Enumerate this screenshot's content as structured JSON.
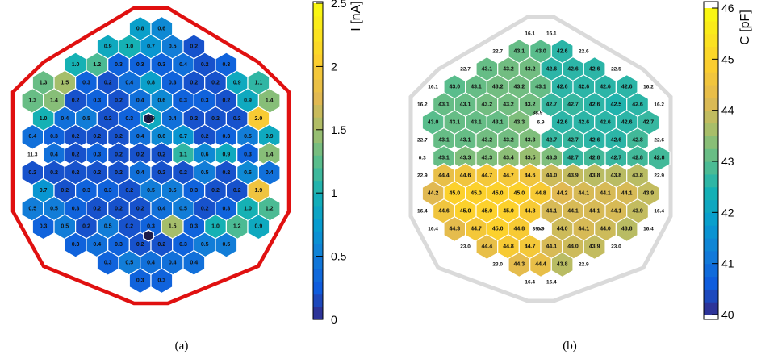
{
  "chart_data": [
    {
      "type": "heatmap",
      "panel_label": "(a)",
      "colorbar": {
        "title": "I [nA]",
        "min": 0,
        "max": 2.5,
        "ticks": [
          "0",
          "0.5",
          "1",
          "1.5",
          "2",
          "2.5"
        ],
        "tick_values": [
          0,
          0.5,
          1,
          1.5,
          2,
          2.5
        ]
      },
      "rows": [
        [
          "0.8",
          "0.6"
        ],
        [
          "0.9",
          "1.0",
          "0.7",
          "0.5",
          "0.2"
        ],
        [
          "1.0",
          "1.2",
          "0.3",
          "0.3",
          "0.3",
          "0.4",
          "0.2",
          "0.3"
        ],
        [
          "1.3",
          "1.5",
          "0.3",
          "0.2",
          "0.4",
          "0.8",
          "0.3",
          "0.2",
          "0.2",
          "0.9",
          "1.1"
        ],
        [
          "1.3",
          "1.4",
          "0.2",
          "0.3",
          "0.2",
          "0.4",
          "0.6",
          "0.3",
          "0.3",
          "0.2",
          "0.9",
          "1.4"
        ],
        [
          "1.0",
          "0.4",
          "0.5",
          "0.2",
          "0.3",
          "0.9",
          "0.4",
          "0.2",
          "0.2",
          "0.2",
          "2.0"
        ],
        [
          "0.4",
          "0.3",
          "0.2",
          "0.2",
          "0.2",
          "0.4",
          "0.6",
          "0.7",
          "0.2",
          "0.3",
          "0.5",
          "0.9"
        ],
        [
          "11.3",
          "0.4",
          "0.2",
          "0.3",
          "0.2",
          "0.2",
          "0.2",
          "1.1",
          "0.6",
          "0.9",
          "0.3",
          "1.4"
        ],
        [
          "0.2",
          "0.2",
          "0.2",
          "0.2",
          "0.2",
          "0.4",
          "0.2",
          "0.2",
          "0.5",
          "0.2",
          "0.6",
          "0.4"
        ],
        [
          "0.7",
          "0.2",
          "0.3",
          "0.3",
          "0.2",
          "0.5",
          "0.5",
          "0.3",
          "0.2",
          "0.2",
          "1.9"
        ],
        [
          "0.5",
          "0.5",
          "0.3",
          "0.2",
          "0.2",
          "0.2",
          "0.4",
          "0.5",
          "0.2",
          "0.3",
          "1.0",
          "1.2"
        ],
        [
          "0.3",
          "0.5",
          "0.2",
          "0.5",
          "0.2",
          "0.3",
          "1.5",
          "0.3",
          "1.0",
          "1.2",
          "0.9"
        ],
        [
          "0.3",
          "0.4",
          "0.3",
          "0.2",
          "0.2",
          "0.3",
          "0.5",
          "0.5"
        ],
        [
          "0.3",
          "0.5",
          "0.4",
          "0.4",
          "0.4"
        ],
        [
          "0.3",
          "0.3"
        ]
      ]
    },
    {
      "type": "heatmap",
      "panel_label": "(b)",
      "colorbar": {
        "title": "C [pF]",
        "min": 40,
        "max": 46,
        "ticks": [
          "40",
          "41",
          "42",
          "43",
          "44",
          "45",
          "46"
        ],
        "tick_values": [
          40,
          41,
          42,
          43,
          44,
          45,
          46
        ]
      },
      "rows": [
        [
          "16.1",
          "16.1"
        ],
        [
          "22.7",
          "43.1",
          "43.0",
          "42.6",
          "22.6"
        ],
        [
          "22.7",
          "43.1",
          "43.2",
          "43.2",
          "42.6",
          "42.6",
          "42.6",
          "22.5"
        ],
        [
          "16.1",
          "43.0",
          "43.1",
          "43.2",
          "43.2",
          "43.1",
          "42.6",
          "42.6",
          "42.6",
          "42.6",
          "16.2"
        ],
        [
          "16.2",
          "43.1",
          "43.1",
          "43.2",
          "43.2",
          "43.2",
          "42.7",
          "42.7",
          "42.6",
          "42.5",
          "42.6",
          "16.2"
        ],
        [
          "43.0",
          "43.1",
          "43.1",
          "43.1",
          "43.3",
          "6.9",
          "42.6",
          "42.6",
          "42.6",
          "42.6",
          "42.7"
        ],
        [
          "22.7",
          "43.1",
          "43.1",
          "43.2",
          "43.2",
          "43.3",
          "42.7",
          "42.7",
          "42.6",
          "42.6",
          "42.8",
          "22.6"
        ],
        [
          "0.3",
          "43.1",
          "43.3",
          "43.3",
          "43.4",
          "43.5",
          "43.3",
          "42.7",
          "42.8",
          "42.7",
          "42.8",
          "42.8"
        ],
        [
          "22.9",
          "44.4",
          "44.6",
          "44.7",
          "44.7",
          "44.6",
          "44.0",
          "43.9",
          "43.8",
          "43.8",
          "43.8",
          "22.9"
        ],
        [
          "44.2",
          "45.0",
          "45.0",
          "45.0",
          "45.0",
          "44.8",
          "44.2",
          "44.1",
          "44.1",
          "44.1",
          "43.9"
        ],
        [
          "16.4",
          "44.6",
          "45.0",
          "45.0",
          "45.0",
          "44.8",
          "44.1",
          "44.1",
          "44.1",
          "44.1",
          "43.9",
          "16.4"
        ],
        [
          "16.4",
          "44.3",
          "44.7",
          "45.0",
          "44.8",
          "6.9",
          "44.0",
          "44.1",
          "44.0",
          "43.8",
          "16.4"
        ],
        [
          "23.0",
          "44.4",
          "44.8",
          "44.7",
          "44.1",
          "44.0",
          "43.9",
          "23.0"
        ],
        [
          "23.0",
          "44.3",
          "44.4",
          "43.8",
          "22.9"
        ],
        [
          "16.4",
          "16.4"
        ]
      ],
      "extra_labels": [
        "38.9",
        "39.4"
      ]
    }
  ]
}
